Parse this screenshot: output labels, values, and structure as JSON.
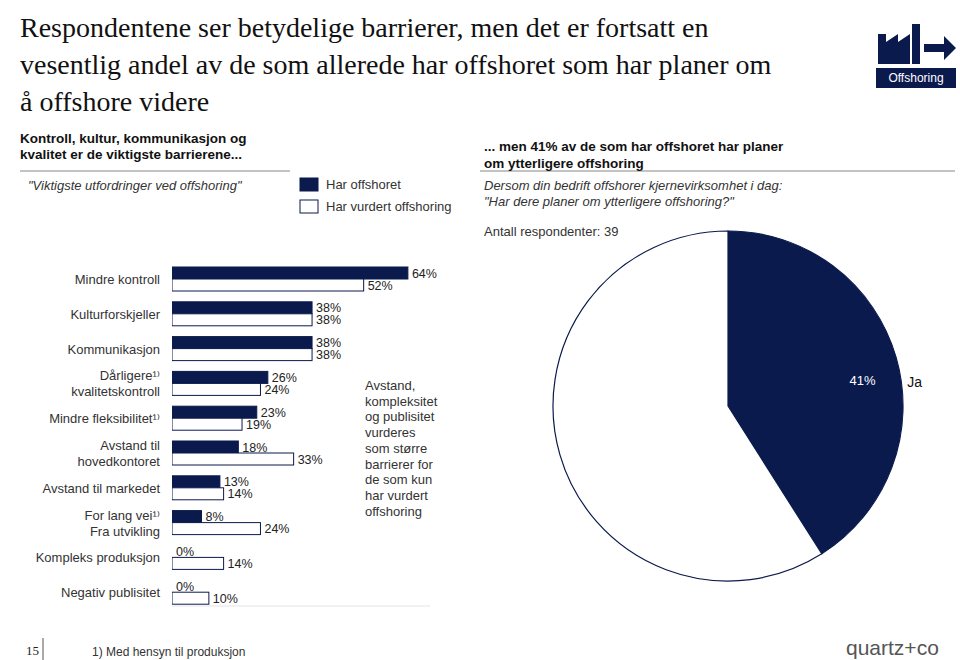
{
  "page": {
    "title": "Respondentene ser betydelige barrierer, men det er fortsatt en\nvesentlig andel av de som allerede har offshoret som har planer om\nå offshore videre",
    "logo": "Offshoring",
    "page_number": "15",
    "footnote": "1) Med hensyn til produksjon",
    "brand": "quartz+co"
  },
  "chart_data": [
    {
      "type": "bar",
      "orientation": "horizontal",
      "title": "Kontroll, kultur, kommunikasjon og\nkvalitet er de viktigste barrierene...",
      "subtitle": "\"Viktigste utfordringer ved offshoring\"",
      "categories": [
        "Mindre kontroll",
        "Kulturforskjeller",
        "Kommunikasjon",
        "Dårligere¹⁾\nkvalitetskontroll",
        "Mindre fleksibilitet¹⁾",
        "Avstand til\nhovedkontoret",
        "Avstand til markedet",
        "For lang vei¹⁾\nFra utvikling",
        "Kompleks produksjon",
        "Negativ publisitet"
      ],
      "series": [
        {
          "name": "Har offshoret",
          "color": "#0b1a4d",
          "values": [
            64,
            38,
            38,
            26,
            23,
            18,
            13,
            8,
            0,
            0
          ],
          "value_labels": [
            "64%",
            "38%",
            "38%",
            "26%",
            "23%",
            "18%",
            "13%",
            "8%",
            "0%",
            "0%"
          ]
        },
        {
          "name": "Har vurdert offshoring",
          "color": "#ffffff",
          "values": [
            52,
            38,
            38,
            24,
            19,
            33,
            14,
            24,
            14,
            10
          ],
          "value_labels": [
            "52%",
            "38%",
            "38%",
            "24%",
            "19%",
            "33%",
            "14%",
            "24%",
            "14%",
            "10%"
          ]
        }
      ],
      "xlim": [
        0,
        70
      ],
      "data_labels": true,
      "tick_labels": "y",
      "legend": "top",
      "annotations": [
        "Avstand,\nkompleksitet\nog publisitet\nvurderes\nsom større\nbarrierer for\nde som kun\nhar vurdert\noffshoring"
      ]
    },
    {
      "type": "pie",
      "title": "... men 41% av de som har offshoret har planer\nom ytterligere offshoring",
      "subtitle": "Dersom din bedrift offshorer kjernevirksomhet i dag:\n\"Har dere planer om ytterligere offshoring?\"",
      "categories": [
        "Ja",
        null
      ],
      "values": [
        41,
        59
      ],
      "colors": [
        "#0b1a4d",
        "#ffffff"
      ],
      "data_labels": true,
      "value_labels": [
        "41%",
        null
      ],
      "annotations": [
        "Antall respondenter: 39"
      ]
    }
  ]
}
